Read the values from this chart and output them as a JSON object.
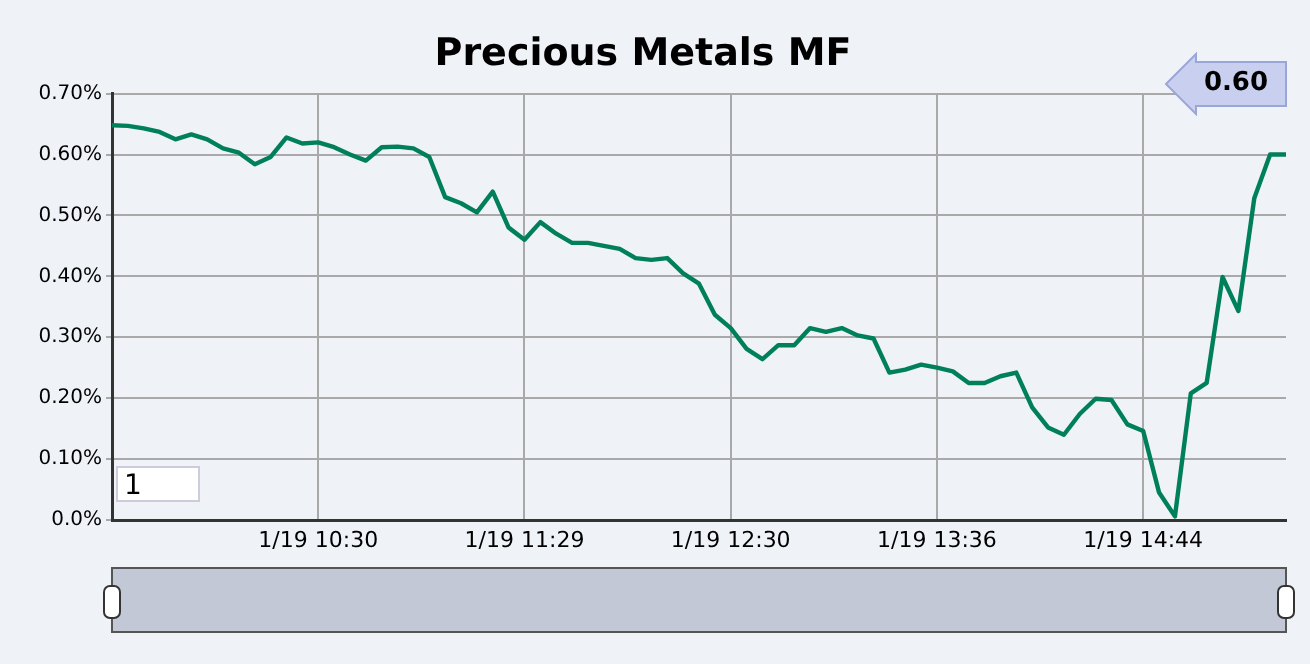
{
  "chart_data": {
    "type": "line",
    "title": "Precious Metals MF",
    "categories": [
      null,
      null,
      null,
      null,
      null,
      null,
      null,
      null,
      null,
      null,
      null,
      null,
      null,
      "1/19 10:30",
      null,
      null,
      null,
      null,
      null,
      null,
      null,
      null,
      null,
      null,
      null,
      null,
      "1/19 11:29",
      null,
      null,
      null,
      null,
      null,
      null,
      null,
      null,
      null,
      null,
      null,
      null,
      "1/19 12:30",
      null,
      null,
      null,
      null,
      null,
      null,
      null,
      null,
      null,
      null,
      null,
      null,
      "1/19 13:36",
      null,
      null,
      null,
      null,
      null,
      null,
      null,
      null,
      null,
      null,
      null,
      null,
      "1/19 14:44",
      null,
      null,
      null,
      null,
      null,
      null,
      null,
      null,
      null
    ],
    "series": [
      {
        "color": "#00805a",
        "values": [
          0.648,
          0.647,
          0.643,
          0.637,
          0.625,
          0.633,
          0.625,
          0.61,
          0.603,
          0.584,
          0.596,
          0.628,
          0.618,
          0.62,
          0.612,
          0.6,
          0.59,
          0.612,
          0.613,
          0.61,
          0.596,
          0.53,
          0.52,
          0.505,
          0.539,
          0.48,
          0.46,
          0.489,
          0.47,
          0.455,
          0.455,
          0.45,
          0.445,
          0.43,
          0.427,
          0.43,
          0.405,
          0.388,
          0.337,
          0.315,
          0.281,
          0.264,
          0.287,
          0.287,
          0.315,
          0.309,
          0.315,
          0.303,
          0.298,
          0.242,
          0.247,
          0.255,
          0.25,
          0.244,
          0.225,
          0.225,
          0.236,
          0.242,
          0.185,
          0.152,
          0.14,
          0.174,
          0.199,
          0.197,
          0.157,
          0.146,
          0.045,
          0.006,
          0.208,
          0.225,
          0.399,
          0.343,
          0.528,
          0.6,
          0.6
        ]
      }
    ],
    "ylim": [
      0,
      0.7
    ],
    "yticks": [
      {
        "value": 0,
        "label": "0.0%"
      },
      {
        "value": 0.1,
        "label": "0.10%"
      },
      {
        "value": 0.2,
        "label": "0.20%"
      },
      {
        "value": 0.3,
        "label": "0.30%"
      },
      {
        "value": 0.4,
        "label": "0.40%"
      },
      {
        "value": 0.5,
        "label": "0.50%"
      },
      {
        "value": 0.6,
        "label": "0.60%"
      },
      {
        "value": 0.7,
        "label": "0.70%"
      }
    ],
    "annotations": [
      "0.60",
      "1"
    ],
    "grid": true,
    "legend": false,
    "marker": "none",
    "line_style": "solid"
  }
}
